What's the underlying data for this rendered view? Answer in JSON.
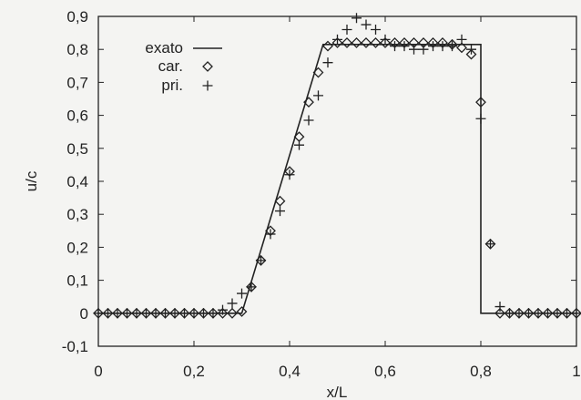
{
  "chart_data": {
    "type": "line",
    "title": "",
    "xlabel": "x/L",
    "ylabel": "u/c",
    "xlim": [
      0,
      1
    ],
    "ylim": [
      -0.1,
      0.9
    ],
    "x_ticks": [
      0,
      0.2,
      0.4,
      0.6,
      0.8,
      1
    ],
    "x_tick_labels": [
      "0",
      "0,2",
      "0,4",
      "0,6",
      "0,8",
      "1"
    ],
    "y_ticks": [
      -0.1,
      0,
      0.1,
      0.2,
      0.3,
      0.4,
      0.5,
      0.6,
      0.7,
      0.8,
      0.9
    ],
    "y_tick_labels": [
      "-0,1",
      "0",
      "0,1",
      "0,2",
      "0,3",
      "0,4",
      "0,5",
      "0,6",
      "0,7",
      "0,8",
      "0,9"
    ],
    "grid": false,
    "legend_position": "top-left",
    "colors": {
      "ink": "#222222",
      "background": "#f4f4f2"
    },
    "series": [
      {
        "name": "exato",
        "marker": "line",
        "x": [
          0,
          0.3,
          0.47,
          0.8,
          0.8,
          1.0
        ],
        "y": [
          0,
          0,
          0.815,
          0.815,
          0,
          0
        ]
      },
      {
        "name": "car.",
        "marker": "diamond",
        "x": [
          0,
          0.02,
          0.04,
          0.06,
          0.08,
          0.1,
          0.12,
          0.14,
          0.16,
          0.18,
          0.2,
          0.22,
          0.24,
          0.26,
          0.28,
          0.3,
          0.32,
          0.34,
          0.36,
          0.38,
          0.4,
          0.42,
          0.44,
          0.46,
          0.48,
          0.5,
          0.52,
          0.54,
          0.56,
          0.58,
          0.6,
          0.62,
          0.64,
          0.66,
          0.68,
          0.7,
          0.72,
          0.74,
          0.76,
          0.78,
          0.8,
          0.82,
          0.84,
          0.86,
          0.88,
          0.9,
          0.92,
          0.94,
          0.96,
          0.98,
          1.0
        ],
        "y": [
          0,
          0,
          0,
          0,
          0,
          0,
          0,
          0,
          0,
          0,
          0,
          0,
          0,
          0,
          0,
          0.005,
          0.08,
          0.16,
          0.25,
          0.34,
          0.43,
          0.535,
          0.64,
          0.73,
          0.81,
          0.82,
          0.82,
          0.82,
          0.82,
          0.82,
          0.82,
          0.82,
          0.82,
          0.82,
          0.82,
          0.82,
          0.82,
          0.815,
          0.805,
          0.785,
          0.64,
          0.21,
          0,
          0,
          0,
          0,
          0,
          0,
          0,
          0,
          0
        ]
      },
      {
        "name": "pri.",
        "marker": "plus",
        "x": [
          0,
          0.02,
          0.04,
          0.06,
          0.08,
          0.1,
          0.12,
          0.14,
          0.16,
          0.18,
          0.2,
          0.22,
          0.24,
          0.26,
          0.28,
          0.3,
          0.32,
          0.34,
          0.36,
          0.38,
          0.4,
          0.42,
          0.44,
          0.46,
          0.48,
          0.5,
          0.52,
          0.54,
          0.56,
          0.58,
          0.6,
          0.62,
          0.64,
          0.66,
          0.68,
          0.7,
          0.72,
          0.74,
          0.76,
          0.78,
          0.8,
          0.82,
          0.84,
          0.86,
          0.88,
          0.9,
          0.92,
          0.94,
          0.96,
          0.98,
          1.0
        ],
        "y": [
          0,
          0,
          0,
          0,
          0,
          0,
          0,
          0,
          0,
          0,
          0,
          0,
          0,
          0.01,
          0.03,
          0.06,
          0.08,
          0.16,
          0.24,
          0.31,
          0.42,
          0.51,
          0.585,
          0.66,
          0.76,
          0.83,
          0.86,
          0.895,
          0.875,
          0.86,
          0.83,
          0.81,
          0.81,
          0.8,
          0.8,
          0.81,
          0.81,
          0.81,
          0.83,
          0.8,
          0.59,
          0.21,
          0.02,
          0,
          0,
          0,
          0,
          0,
          0,
          0,
          0
        ]
      }
    ]
  }
}
